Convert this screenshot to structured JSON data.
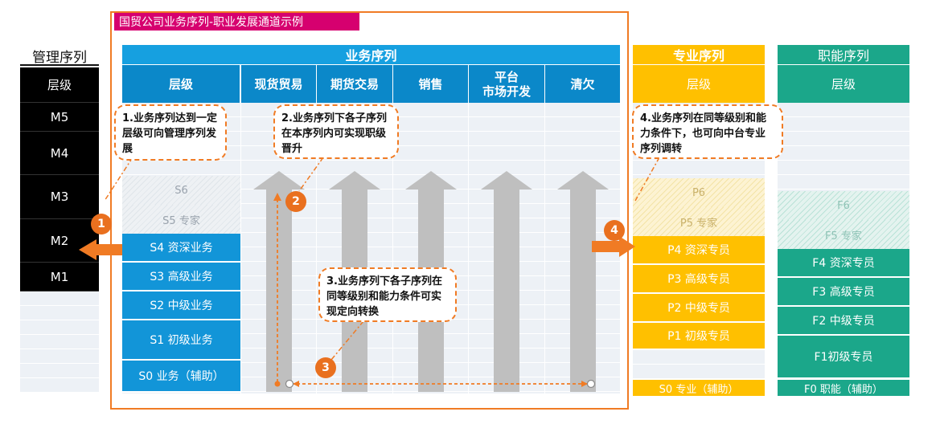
{
  "frame_title": "国贸公司业务序列-职业发展通道示例",
  "management": {
    "header": "管理序列",
    "rows": [
      "层级",
      "M5",
      "M4",
      "M3",
      "M2",
      "M1"
    ]
  },
  "business": {
    "header": "业务序列",
    "columns": [
      "层级",
      "现货贸易",
      "期货交易",
      "销售",
      "平台\n市场开发",
      "清欠"
    ],
    "faded_levels": [
      "S6",
      "S5 专家"
    ],
    "levels": [
      "S4 资深业务",
      "S3 高级业务",
      "S2 中级业务",
      "S1 初级业务",
      "S0 业务（辅助）"
    ]
  },
  "professional": {
    "header": "专业序列",
    "level_label": "层级",
    "faded_levels": [
      "P6",
      "P5 专家"
    ],
    "levels": [
      "P4 资深专员",
      "P3 高级专员",
      "P2 中级专员",
      "P1 初级专员",
      "S0  专业（辅助）"
    ]
  },
  "functional": {
    "header": "职能序列",
    "level_label": "层级",
    "faded_levels": [
      "F6",
      "F5 专家"
    ],
    "levels": [
      "F4 资深专员",
      "F3 高级专员",
      "F2 中级专员",
      "F1初级专员",
      "F0  职能（辅助）"
    ]
  },
  "callouts": [
    "1.业务序列达到一定层级可向管理序列发展",
    "2.业务序列下各子序列在本序列内可实现职级晋升",
    "3.业务序列下各子序列在同等级别和能力条件可实现定向转换",
    "4.业务序列在同等级别和能力条件下，也可向中台专业序列调转"
  ],
  "badges": [
    "1",
    "2",
    "3",
    "4"
  ],
  "colors": {
    "accent_orange": "#f07b24",
    "title_magenta": "#d6006f",
    "business_blue": "#1295d8",
    "professional_gold": "#ffc000",
    "functional_green": "#1ba78a",
    "management_black": "#000000",
    "arrow_gray": "#bfbfbf"
  }
}
